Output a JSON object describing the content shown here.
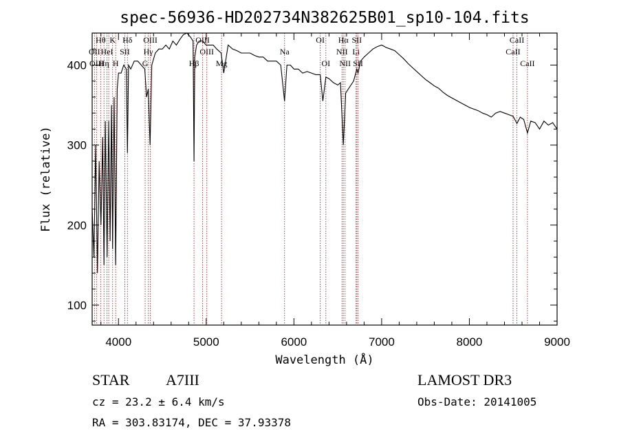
{
  "chart_data": {
    "type": "line",
    "title": "spec-56936-HD202734N382625B01_sp10-104.fits",
    "xlabel": "Wavelength (Å)",
    "ylabel": "Flux (relative)",
    "xlim": [
      3700,
      9000
    ],
    "ylim": [
      75,
      440
    ],
    "x_ticks": [
      4000,
      5000,
      6000,
      7000,
      8000,
      9000
    ],
    "y_ticks": [
      100,
      200,
      300,
      400
    ],
    "grid": false,
    "colors": {
      "spectrum": "#000000",
      "line_markers": "#b22222"
    },
    "series": [
      {
        "x": [
          3700,
          3720,
          3740,
          3760,
          3780,
          3800,
          3820,
          3835,
          3850,
          3870,
          3889,
          3905,
          3920,
          3933,
          3950,
          3968,
          3985,
          4000,
          4030,
          4060,
          4090,
          4102,
          4115,
          4140,
          4180,
          4220,
          4260,
          4300,
          4320,
          4340,
          4360,
          4380,
          4420,
          4460,
          4500,
          4540,
          4580,
          4620,
          4660,
          4700,
          4740,
          4780,
          4820,
          4850,
          4861,
          4870,
          4890,
          4920,
          4960,
          5000,
          5040,
          5080,
          5120,
          5170,
          5200,
          5250,
          5300,
          5350,
          5400,
          5450,
          5500,
          5550,
          5600,
          5650,
          5700,
          5750,
          5800,
          5850,
          5893,
          5920,
          5960,
          6000,
          6050,
          6100,
          6150,
          6200,
          6250,
          6300,
          6330,
          6364,
          6400,
          6450,
          6500,
          6530,
          6563,
          6590,
          6620,
          6680,
          6717,
          6731,
          6760,
          6800,
          6850,
          6900,
          6950,
          7000,
          7050,
          7100,
          7150,
          7200,
          7250,
          7300,
          7350,
          7400,
          7450,
          7500,
          7550,
          7600,
          7650,
          7700,
          7750,
          7800,
          7850,
          7900,
          7950,
          8000,
          8050,
          8100,
          8150,
          8200,
          8250,
          8300,
          8350,
          8400,
          8450,
          8498,
          8542,
          8580,
          8620,
          8662,
          8700,
          8750,
          8800,
          8850,
          8900,
          8950,
          9000
        ],
        "y": [
          220,
          160,
          300,
          140,
          280,
          200,
          310,
          150,
          330,
          160,
          330,
          180,
          350,
          170,
          360,
          150,
          370,
          390,
          390,
          400,
          395,
          290,
          400,
          395,
          405,
          405,
          400,
          395,
          360,
          370,
          300,
          400,
          415,
          420,
          420,
          425,
          420,
          430,
          425,
          432,
          438,
          440,
          435,
          430,
          280,
          410,
          425,
          430,
          430,
          425,
          425,
          425,
          420,
          415,
          390,
          425,
          420,
          418,
          415,
          415,
          415,
          412,
          410,
          410,
          405,
          405,
          405,
          400,
          355,
          400,
          400,
          395,
          395,
          390,
          392,
          390,
          388,
          388,
          355,
          385,
          383,
          378,
          375,
          378,
          300,
          365,
          370,
          380,
          395,
          390,
          405,
          410,
          415,
          420,
          423,
          425,
          422,
          420,
          418,
          413,
          408,
          402,
          397,
          392,
          387,
          382,
          378,
          374,
          371,
          366,
          362,
          359,
          356,
          353,
          350,
          347,
          345,
          343,
          340,
          338,
          335,
          340,
          342,
          340,
          338,
          336,
          327,
          335,
          332,
          315,
          330,
          328,
          320,
          330,
          325,
          328,
          320
        ]
      }
    ],
    "spectral_lines": [
      {
        "wavelength": 3726,
        "label": "OII",
        "row": 1
      },
      {
        "wavelength": 3750,
        "label": "OIII",
        "row": 2
      },
      {
        "wavelength": 3797,
        "label": "Hθ",
        "row": 0
      },
      {
        "wavelength": 3835,
        "label": "Hη",
        "row": 2
      },
      {
        "wavelength": 3869,
        "label": "HeI",
        "row": 1
      },
      {
        "wavelength": 3889,
        "label": "",
        "row": 0
      },
      {
        "wavelength": 3933,
        "label": "K",
        "row": 0
      },
      {
        "wavelength": 3968,
        "label": "H",
        "row": 2
      },
      {
        "wavelength": 4072,
        "label": "SII",
        "row": 1
      },
      {
        "wavelength": 4102,
        "label": "Hδ",
        "row": 0
      },
      {
        "wavelength": 4304,
        "label": "G",
        "row": 2
      },
      {
        "wavelength": 4340,
        "label": "Hγ",
        "row": 1
      },
      {
        "wavelength": 4363,
        "label": "OIII",
        "row": 0
      },
      {
        "wavelength": 4861,
        "label": "Hβ",
        "row": 2
      },
      {
        "wavelength": 4959,
        "label": "OIII",
        "row": 0
      },
      {
        "wavelength": 5007,
        "label": "OIII",
        "row": 1
      },
      {
        "wavelength": 5175,
        "label": "Mg",
        "row": 2
      },
      {
        "wavelength": 5893,
        "label": "Na",
        "row": 1
      },
      {
        "wavelength": 6300,
        "label": "OI",
        "row": 0
      },
      {
        "wavelength": 6364,
        "label": "OI",
        "row": 2
      },
      {
        "wavelength": 6548,
        "label": "NII",
        "row": 1
      },
      {
        "wavelength": 6563,
        "label": "Hα",
        "row": 0
      },
      {
        "wavelength": 6583,
        "label": "NII",
        "row": 2
      },
      {
        "wavelength": 6708,
        "label": "Li",
        "row": 1
      },
      {
        "wavelength": 6717,
        "label": "SII",
        "row": 0
      },
      {
        "wavelength": 6731,
        "label": "SII",
        "row": 2
      },
      {
        "wavelength": 8498,
        "label": "CaII",
        "row": 1
      },
      {
        "wavelength": 8542,
        "label": "CaII",
        "row": 0
      },
      {
        "wavelength": 8662,
        "label": "CaII",
        "row": 2
      }
    ]
  },
  "info": {
    "object_class": "STAR",
    "subclass": "A7III",
    "survey": "LAMOST DR3",
    "redshift": "cz = 23.2 ± 6.4 km/s",
    "obs_date": "Obs-Date: 20141005",
    "coords": "RA = 303.83174, DEC =  37.93378"
  }
}
